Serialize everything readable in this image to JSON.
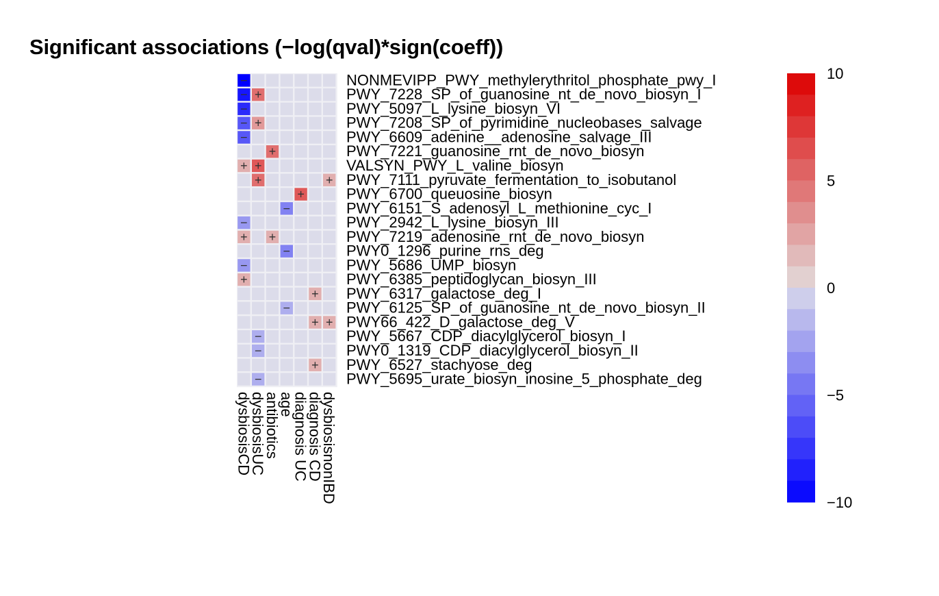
{
  "chart_data": {
    "type": "heatmap",
    "title": "Significant associations (−log(qval)*sign(coeff))",
    "columns": [
      "dysbiosisCD",
      "dysbiosisUC",
      "antibiotics",
      "age",
      "diagnosis UC",
      "diagnosis CD",
      "dysbiosisnonIBD"
    ],
    "rows": [
      "NONMEVIPP_PWY_methylerythritol_phosphate_pwy_I",
      "PWY_7228_SP_of_guanosine_nt_de_novo_biosyn_I",
      "PWY_5097_L_lysine_biosyn_VI",
      "PWY_7208_SP_of_pyrimidine_nucleobases_salvage",
      "PWY_6609_adenine__adenosine_salvage_III",
      "PWY_7221_guanosine_rnt_de_novo_biosyn",
      "VALSYN_PWY_L_valine_biosyn",
      "PWY_7111_pyruvate_fermentation_to_isobutanol",
      "PWY_6700_queuosine_biosyn",
      "PWY_6151_S_adenosyl_L_methionine_cyc_I",
      "PWY_2942_L_lysine_biosyn_III",
      "PWY_7219_adenosine_rnt_de_novo_biosyn",
      "PWY0_1296_purine_rns_deg",
      "PWY_5686_UMP_biosyn",
      "PWY_6385_peptidoglycan_biosyn_III",
      "PWY_6317_galactose_deg_I",
      "PWY_6125_SP_of_guanosine_nt_de_novo_biosyn_II",
      "PWY66_422_D_galactose_deg_V",
      "PWY_5667_CDP_diacylglycerol_biosyn_I",
      "PWY0_1319_CDP_diacylglycerol_biosyn_II",
      "PWY_6527_stachyose_deg",
      "PWY_5695_urate_biosyn_inosine_5_phosphate_deg"
    ],
    "values": [
      [
        -10,
        0,
        0,
        0,
        0,
        0,
        0
      ],
      [
        -9,
        5,
        0,
        0,
        0,
        0,
        0
      ],
      [
        -8,
        0,
        0,
        0,
        0,
        0,
        0
      ],
      [
        -6,
        3,
        0,
        0,
        0,
        0,
        0
      ],
      [
        -6,
        0,
        0,
        0,
        0,
        0,
        0
      ],
      [
        0,
        0,
        5,
        0,
        0,
        0,
        0
      ],
      [
        2,
        6,
        0,
        0,
        0,
        0,
        0
      ],
      [
        0,
        5,
        0,
        0,
        0,
        0,
        2
      ],
      [
        0,
        0,
        0,
        0,
        6,
        0,
        0
      ],
      [
        0,
        0,
        0,
        -4,
        0,
        0,
        0
      ],
      [
        -3,
        0,
        0,
        0,
        0,
        0,
        0
      ],
      [
        2,
        0,
        2,
        0,
        0,
        0,
        0
      ],
      [
        0,
        0,
        0,
        -4,
        0,
        0,
        0
      ],
      [
        -3,
        0,
        0,
        0,
        0,
        0,
        0
      ],
      [
        2,
        0,
        0,
        0,
        0,
        0,
        0
      ],
      [
        0,
        0,
        0,
        0,
        0,
        2,
        0
      ],
      [
        0,
        0,
        0,
        -2,
        0,
        0,
        0
      ],
      [
        0,
        0,
        0,
        0,
        0,
        2,
        2
      ],
      [
        0,
        -2,
        0,
        0,
        0,
        0,
        0
      ],
      [
        0,
        -2,
        0,
        0,
        0,
        0,
        0
      ],
      [
        0,
        0,
        0,
        0,
        0,
        2,
        0
      ],
      [
        0,
        -2,
        0,
        0,
        0,
        0,
        0
      ]
    ],
    "scale": {
      "min": -10,
      "max": 10,
      "ticks": [
        10,
        5,
        0,
        -5,
        -10
      ],
      "tick_labels": [
        "10",
        "5",
        "0",
        "−5",
        "−10"
      ],
      "colors": [
        "#ff0000",
        "#f7f7f7",
        "#0000ff"
      ],
      "colors_desc": {
        "pos_high": "#dd0000",
        "neutral_neg": "#d9d9ea",
        "neutral_pos": "#e2dbdb",
        "neg_high": "#0000ff"
      }
    },
    "cell_background": "#dcdcea",
    "sign_symbols": {
      "positive": "+",
      "negative": "−"
    },
    "legend_position": "right"
  }
}
